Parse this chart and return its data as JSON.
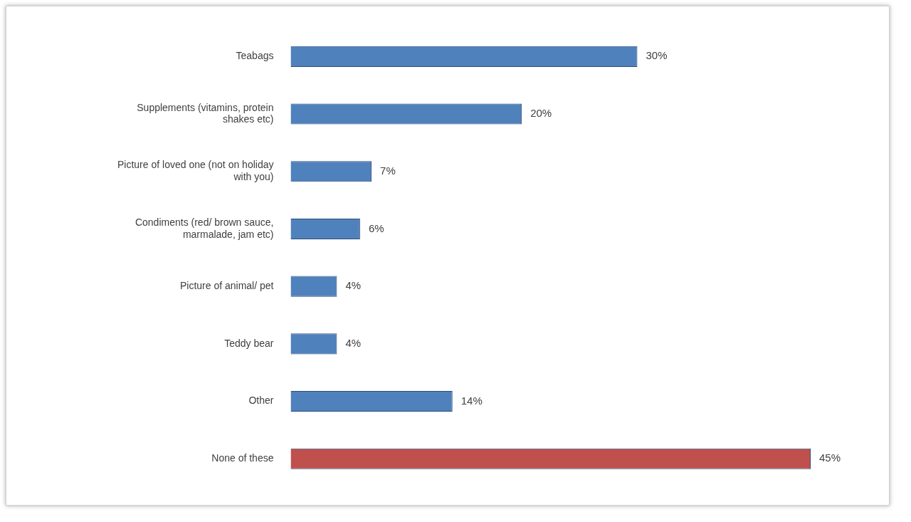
{
  "chart_data": {
    "type": "bar",
    "orientation": "horizontal",
    "categories": [
      "Teabags",
      "Supplements (vitamins, protein shakes etc)",
      "Picture of loved one (not on holiday with you)",
      "Condiments (red/ brown sauce, marmalade, jam etc)",
      "Picture of animal/ pet",
      "Teddy bear",
      "Other",
      "None of these"
    ],
    "values": [
      30,
      20,
      7,
      6,
      4,
      4,
      14,
      45
    ],
    "colors": [
      "#4f81bd",
      "#4f81bd",
      "#4f81bd",
      "#4f81bd",
      "#4f81bd",
      "#4f81bd",
      "#4f81bd",
      "#c0504d"
    ],
    "value_labels": [
      "30%",
      "20%",
      "7%",
      "6%",
      "4%",
      "4%",
      "14%",
      "45%"
    ],
    "legend": false
  }
}
